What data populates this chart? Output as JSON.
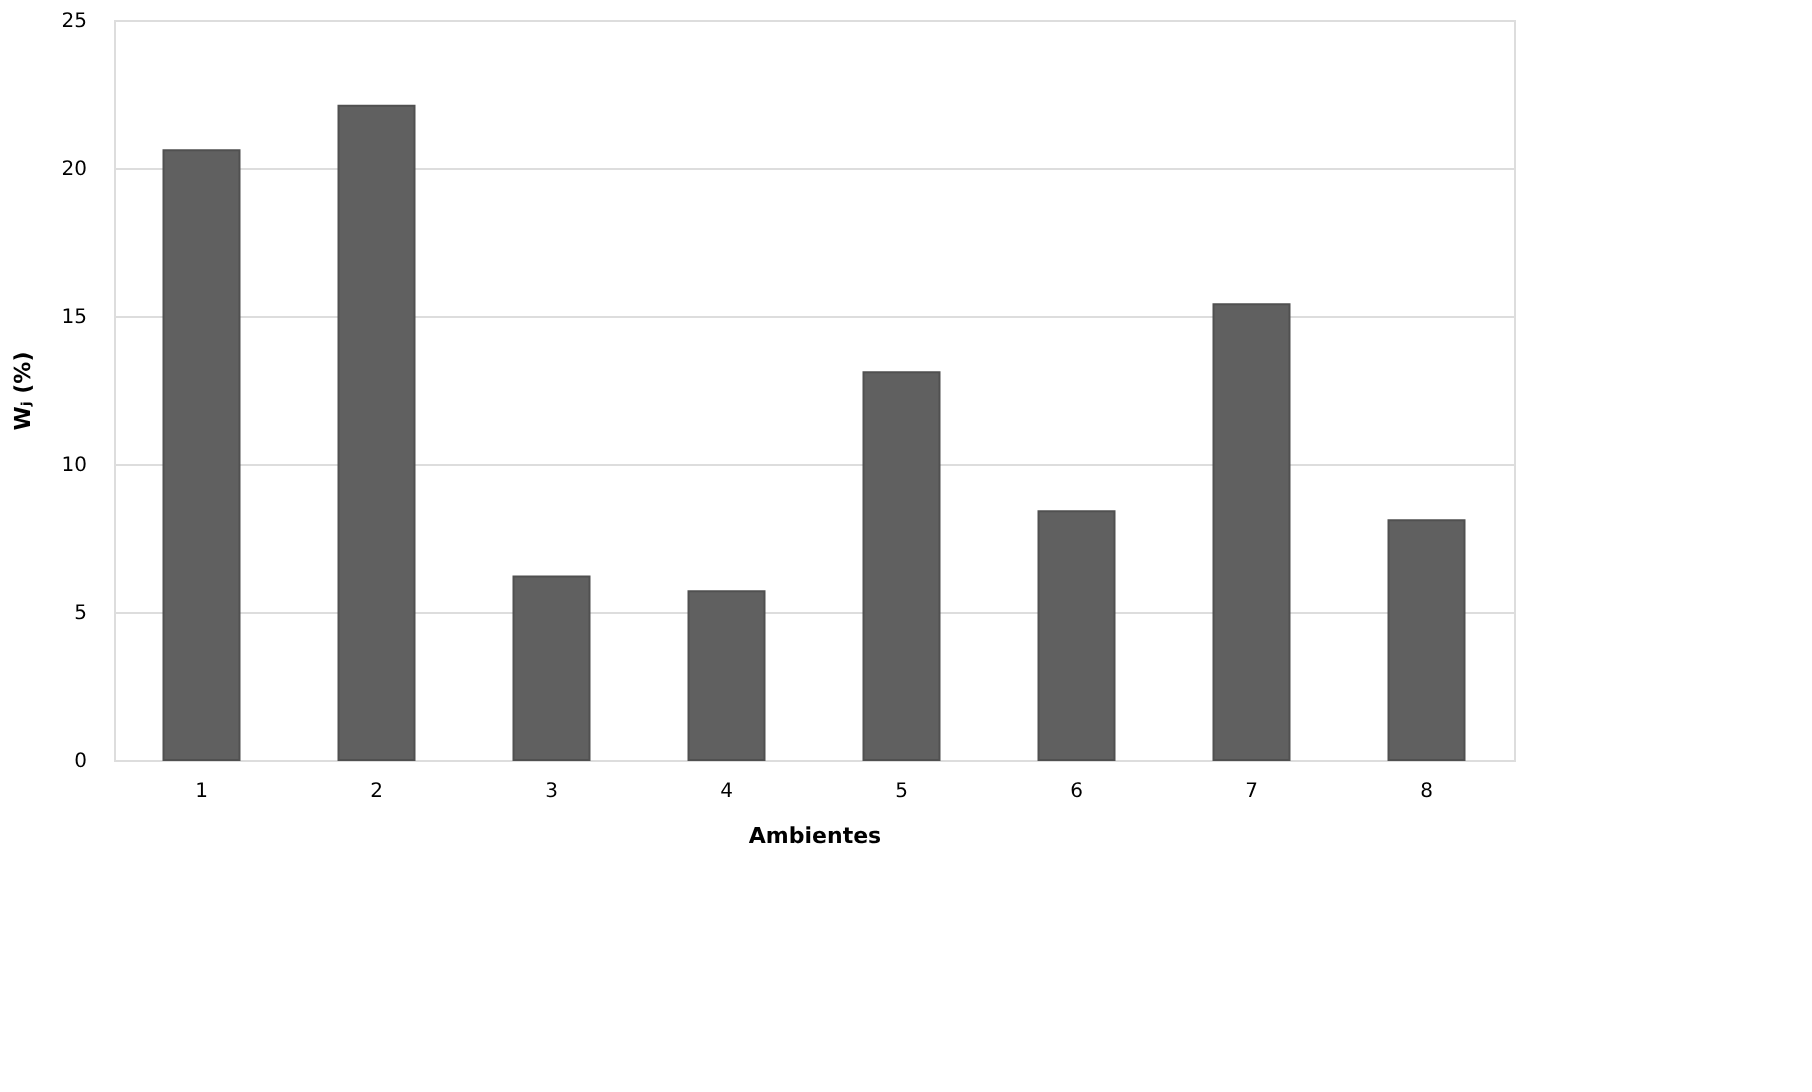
{
  "chart_data": {
    "type": "bar",
    "xlabel": "Ambientes",
    "ylabel": "Wⱼ (%)",
    "categories": [
      "1",
      "2",
      "3",
      "4",
      "5",
      "6",
      "7",
      "8"
    ],
    "values": [
      20.6,
      22.1,
      6.2,
      5.7,
      13.1,
      8.4,
      15.4,
      8.1
    ],
    "color": "#606060",
    "ylim": [
      0,
      25
    ],
    "yticks": [
      0,
      5,
      10,
      15,
      20,
      25
    ],
    "grid": "y"
  }
}
